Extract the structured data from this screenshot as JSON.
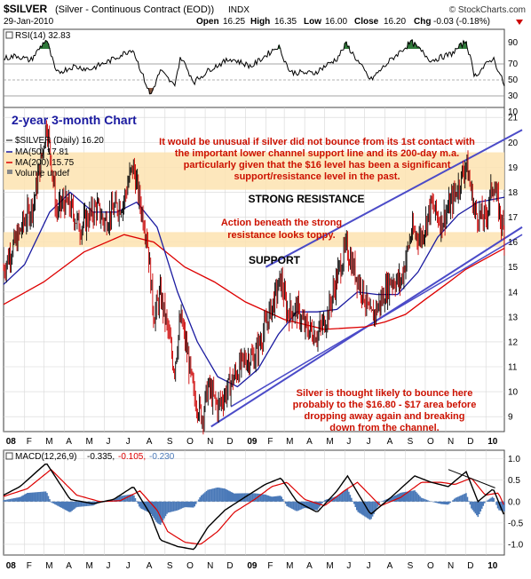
{
  "header": {
    "symbol": "$SILVER",
    "name": "(Silver - Continuous Contract (EOD))",
    "exchange": "INDX",
    "date": "29-Jan-2010",
    "watermark": "© StockCharts.com",
    "open_label": "Open",
    "open": "16.25",
    "high_label": "High",
    "high": "16.35",
    "low_label": "Low",
    "low": "16.00",
    "close_label": "Close",
    "close": "16.20",
    "chg_label": "Chg",
    "chg": "-0.03 (-0.18%)"
  },
  "colors": {
    "price": "#000000",
    "price_down": "#cc0000",
    "ma50": "#1a1aa0",
    "ma200": "#dd0000",
    "band": "#fde3b0",
    "channel": "#4b4bc8",
    "annotation": "#cc1100",
    "title": "#1a1aa0",
    "rsi_green": "#2f7a3a",
    "rsi_brown": "#8a5a44",
    "macd_hist": "#4a79b8"
  },
  "rsi_panel": {
    "legend": "RSI(14) 32.83",
    "ticks": [
      "90",
      "70",
      "50",
      "30",
      "10"
    ]
  },
  "price_panel": {
    "chart_title": "2-year 3-month Chart",
    "legend_main": "$SILVER (Daily) 16.20",
    "legend_ma50": "MA(50) 17.81",
    "legend_ma200": "MA(200) 15.75",
    "legend_volume": "Volume undef",
    "y_ticks": [
      "21",
      "20",
      "19",
      "18",
      "17",
      "16",
      "15",
      "14",
      "13",
      "12",
      "11",
      "10",
      "9"
    ],
    "resistance_label": "STRONG RESISTANCE",
    "support_label": "SUPPORT",
    "note_top": [
      "It would be unusual if silver did not bounce from its 1st contact with",
      "the important lower channel support line and its 200-day m.a.",
      "particularly given that the $16 level has been a significant",
      "support/resistance level in the past."
    ],
    "note_mid": [
      "Action beneath the strong",
      "resistance looks toppy."
    ],
    "note_bottom": [
      "Silver is thought likely to bounce here",
      "probably to the $16.80 - $17 area before",
      "dropping away again and breaking",
      "down from the channel."
    ]
  },
  "x_axis": {
    "labels": [
      "08",
      "F",
      "M",
      "A",
      "M",
      "J",
      "J",
      "A",
      "S",
      "O",
      "N",
      "D",
      "09",
      "F",
      "M",
      "A",
      "M",
      "J",
      "J",
      "A",
      "S",
      "O",
      "N",
      "D",
      "10"
    ]
  },
  "macd_panel": {
    "legend_prefix": "MACD(12,26,9)",
    "macd_value": "-0.335,",
    "signal_value": "-0.105,",
    "hist_value": "-0.230",
    "ticks": [
      "1.0",
      "0.5",
      "0.0",
      "-0.5",
      "-1.0"
    ]
  },
  "chart_data": {
    "type": "line",
    "x_start": "2007-12-31",
    "x_end": "2010-01-29",
    "price_ylim": [
      8.4,
      21.4
    ],
    "series": [
      {
        "name": "$SILVER (Daily)",
        "points": [
          [
            "2007-12-31",
            14.9
          ],
          [
            "2008-01-10",
            15.6
          ],
          [
            "2008-01-20",
            16.1
          ],
          [
            "2008-01-31",
            16.8
          ],
          [
            "2008-02-15",
            17.6
          ],
          [
            "2008-02-29",
            19.8
          ],
          [
            "2008-03-05",
            20.8
          ],
          [
            "2008-03-12",
            19.4
          ],
          [
            "2008-03-20",
            17.2
          ],
          [
            "2008-03-31",
            17.6
          ],
          [
            "2008-04-10",
            17.4
          ],
          [
            "2008-04-25",
            16.6
          ],
          [
            "2008-05-05",
            16.9
          ],
          [
            "2008-05-20",
            17.4
          ],
          [
            "2008-06-01",
            16.8
          ],
          [
            "2008-06-15",
            17.3
          ],
          [
            "2008-06-30",
            17.6
          ],
          [
            "2008-07-10",
            18.7
          ],
          [
            "2008-07-15",
            19.0
          ],
          [
            "2008-07-25",
            17.6
          ],
          [
            "2008-08-05",
            16.2
          ],
          [
            "2008-08-15",
            13.0
          ],
          [
            "2008-08-25",
            13.9
          ],
          [
            "2008-09-05",
            12.5
          ],
          [
            "2008-09-15",
            10.9
          ],
          [
            "2008-09-25",
            13.0
          ],
          [
            "2008-10-05",
            11.5
          ],
          [
            "2008-10-15",
            9.8
          ],
          [
            "2008-10-28",
            9.0
          ],
          [
            "2008-11-05",
            10.2
          ],
          [
            "2008-11-20",
            9.4
          ],
          [
            "2008-12-01",
            9.9
          ],
          [
            "2008-12-15",
            10.6
          ],
          [
            "2008-12-31",
            11.3
          ],
          [
            "2009-01-15",
            11.4
          ],
          [
            "2009-01-31",
            12.6
          ],
          [
            "2009-02-15",
            13.8
          ],
          [
            "2009-02-24",
            14.5
          ],
          [
            "2009-03-05",
            13.2
          ],
          [
            "2009-03-20",
            13.3
          ],
          [
            "2009-04-01",
            12.6
          ],
          [
            "2009-04-20",
            12.3
          ],
          [
            "2009-05-05",
            13.0
          ],
          [
            "2009-05-20",
            14.6
          ],
          [
            "2009-06-03",
            15.8
          ],
          [
            "2009-06-15",
            14.9
          ],
          [
            "2009-06-30",
            13.9
          ],
          [
            "2009-07-10",
            12.9
          ],
          [
            "2009-07-25",
            13.6
          ],
          [
            "2009-08-10",
            14.5
          ],
          [
            "2009-08-25",
            14.4
          ],
          [
            "2009-09-10",
            16.4
          ],
          [
            "2009-09-25",
            16.2
          ],
          [
            "2009-10-10",
            17.5
          ],
          [
            "2009-10-25",
            16.8
          ],
          [
            "2009-11-10",
            17.6
          ],
          [
            "2009-11-25",
            18.6
          ],
          [
            "2009-12-02",
            19.2
          ],
          [
            "2009-12-15",
            17.2
          ],
          [
            "2009-12-31",
            16.9
          ],
          [
            "2010-01-12",
            18.4
          ],
          [
            "2010-01-20",
            17.4
          ],
          [
            "2010-01-29",
            16.2
          ]
        ]
      },
      {
        "name": "MA(50)",
        "points": [
          [
            "2007-12-31",
            14.3
          ],
          [
            "2008-02-01",
            15.1
          ],
          [
            "2008-03-10",
            17.2
          ],
          [
            "2008-04-10",
            18.0
          ],
          [
            "2008-05-15",
            17.2
          ],
          [
            "2008-06-20",
            17.2
          ],
          [
            "2008-07-20",
            17.6
          ],
          [
            "2008-08-20",
            16.6
          ],
          [
            "2008-09-20",
            14.0
          ],
          [
            "2008-10-20",
            12.0
          ],
          [
            "2008-11-20",
            10.6
          ],
          [
            "2008-12-20",
            10.2
          ],
          [
            "2009-01-20",
            10.9
          ],
          [
            "2009-02-20",
            12.3
          ],
          [
            "2009-03-20",
            13.2
          ],
          [
            "2009-04-20",
            13.2
          ],
          [
            "2009-05-20",
            13.3
          ],
          [
            "2009-06-20",
            14.0
          ],
          [
            "2009-07-20",
            13.9
          ],
          [
            "2009-08-20",
            13.9
          ],
          [
            "2009-09-20",
            14.8
          ],
          [
            "2009-10-20",
            16.2
          ],
          [
            "2009-11-20",
            17.1
          ],
          [
            "2009-12-20",
            17.6
          ],
          [
            "2010-01-29",
            17.8
          ]
        ]
      },
      {
        "name": "MA(200)",
        "points": [
          [
            "2007-12-31",
            13.5
          ],
          [
            "2008-03-01",
            14.4
          ],
          [
            "2008-05-01",
            15.6
          ],
          [
            "2008-07-01",
            16.3
          ],
          [
            "2008-08-15",
            16.0
          ],
          [
            "2008-10-01",
            15.0
          ],
          [
            "2008-11-15",
            14.4
          ],
          [
            "2009-01-01",
            13.6
          ],
          [
            "2009-03-01",
            12.9
          ],
          [
            "2009-05-01",
            12.5
          ],
          [
            "2009-07-01",
            12.6
          ],
          [
            "2009-08-01",
            12.8
          ],
          [
            "2009-09-01",
            13.1
          ],
          [
            "2009-10-01",
            13.7
          ],
          [
            "2009-11-01",
            14.3
          ],
          [
            "2009-12-01",
            14.9
          ],
          [
            "2010-01-29",
            15.75
          ]
        ]
      }
    ],
    "bands": [
      {
        "label": "STRONG RESISTANCE",
        "range": [
          18.1,
          19.6
        ]
      },
      {
        "label": "SUPPORT",
        "range": [
          15.8,
          16.4
        ]
      }
    ],
    "channel": {
      "upper": [
        [
          "2009-02-01",
          15.0
        ],
        [
          "2010-02-25",
          20.5
        ]
      ],
      "lower": [
        [
          "2008-11-10",
          8.6
        ],
        [
          "2010-02-25",
          16.6
        ]
      ],
      "lower_inner": [
        [
          "2008-12-10",
          9.4
        ],
        [
          "2010-02-25",
          16.3
        ]
      ]
    },
    "rsi": {
      "ylim": [
        10,
        90
      ],
      "points": [
        [
          "2007-12-31",
          60
        ],
        [
          "2008-01-20",
          63
        ],
        [
          "2008-02-10",
          58
        ],
        [
          "2008-03-05",
          80
        ],
        [
          "2008-03-20",
          45
        ],
        [
          "2008-04-15",
          52
        ],
        [
          "2008-05-10",
          49
        ],
        [
          "2008-06-10",
          58
        ],
        [
          "2008-07-14",
          70
        ],
        [
          "2008-08-10",
          22
        ],
        [
          "2008-08-25",
          48
        ],
        [
          "2008-09-15",
          32
        ],
        [
          "2008-09-25",
          62
        ],
        [
          "2008-10-15",
          36
        ],
        [
          "2008-11-10",
          50
        ],
        [
          "2008-12-10",
          60
        ],
        [
          "2009-01-10",
          52
        ],
        [
          "2009-02-20",
          73
        ],
        [
          "2009-03-10",
          46
        ],
        [
          "2009-04-15",
          45
        ],
        [
          "2009-05-20",
          60
        ],
        [
          "2009-06-03",
          75
        ],
        [
          "2009-07-10",
          38
        ],
        [
          "2009-08-10",
          59
        ],
        [
          "2009-09-10",
          77
        ],
        [
          "2009-10-10",
          58
        ],
        [
          "2009-11-10",
          65
        ],
        [
          "2009-12-02",
          78
        ],
        [
          "2009-12-15",
          42
        ],
        [
          "2010-01-12",
          61
        ],
        [
          "2010-01-29",
          32.83
        ]
      ]
    },
    "macd": {
      "ylim": [
        -1.25,
        1.2
      ],
      "macd": [
        [
          "2007-12-31",
          0.15
        ],
        [
          "2008-01-25",
          0.35
        ],
        [
          "2008-03-05",
          0.9
        ],
        [
          "2008-04-10",
          0.05
        ],
        [
          "2008-05-15",
          -0.05
        ],
        [
          "2008-06-15",
          0.05
        ],
        [
          "2008-07-15",
          0.35
        ],
        [
          "2008-08-10",
          -0.3
        ],
        [
          "2008-08-25",
          -0.9
        ],
        [
          "2008-09-20",
          -1.05
        ],
        [
          "2008-10-15",
          -1.12
        ],
        [
          "2008-11-05",
          -0.6
        ],
        [
          "2008-12-01",
          -0.2
        ],
        [
          "2008-12-31",
          0.1
        ],
        [
          "2009-01-31",
          0.4
        ],
        [
          "2009-02-24",
          0.55
        ],
        [
          "2009-03-20",
          0.0
        ],
        [
          "2009-04-20",
          -0.25
        ],
        [
          "2009-05-20",
          0.25
        ],
        [
          "2009-06-05",
          0.6
        ],
        [
          "2009-07-10",
          -0.3
        ],
        [
          "2009-08-10",
          0.1
        ],
        [
          "2009-09-15",
          0.6
        ],
        [
          "2009-10-10",
          0.45
        ],
        [
          "2009-11-05",
          0.35
        ],
        [
          "2009-12-02",
          0.7
        ],
        [
          "2009-12-20",
          0.0
        ],
        [
          "2010-01-12",
          0.3
        ],
        [
          "2010-01-29",
          -0.335
        ]
      ],
      "signal": [
        [
          "2007-12-31",
          0.12
        ],
        [
          "2008-02-05",
          0.3
        ],
        [
          "2008-03-12",
          0.75
        ],
        [
          "2008-04-20",
          0.15
        ],
        [
          "2008-05-25",
          0.0
        ],
        [
          "2008-06-25",
          0.02
        ],
        [
          "2008-07-25",
          0.25
        ],
        [
          "2008-08-20",
          -0.2
        ],
        [
          "2008-09-05",
          -0.7
        ],
        [
          "2008-10-01",
          -0.95
        ],
        [
          "2008-10-25",
          -1.0
        ],
        [
          "2008-11-20",
          -0.7
        ],
        [
          "2008-12-15",
          -0.25
        ],
        [
          "2009-01-15",
          0.05
        ],
        [
          "2009-02-10",
          0.35
        ],
        [
          "2009-03-05",
          0.45
        ],
        [
          "2009-04-01",
          0.05
        ],
        [
          "2009-05-01",
          -0.1
        ],
        [
          "2009-05-31",
          0.25
        ],
        [
          "2009-06-20",
          0.45
        ],
        [
          "2009-07-25",
          -0.1
        ],
        [
          "2009-08-25",
          0.1
        ],
        [
          "2009-09-25",
          0.45
        ],
        [
          "2009-10-25",
          0.45
        ],
        [
          "2009-11-15",
          0.4
        ],
        [
          "2009-12-10",
          0.55
        ],
        [
          "2009-12-31",
          0.15
        ],
        [
          "2010-01-20",
          0.2
        ],
        [
          "2010-01-29",
          -0.105
        ]
      ],
      "trendline": [
        [
          "2009-11-05",
          0.75
        ],
        [
          "2010-01-15",
          0.32
        ]
      ]
    }
  }
}
